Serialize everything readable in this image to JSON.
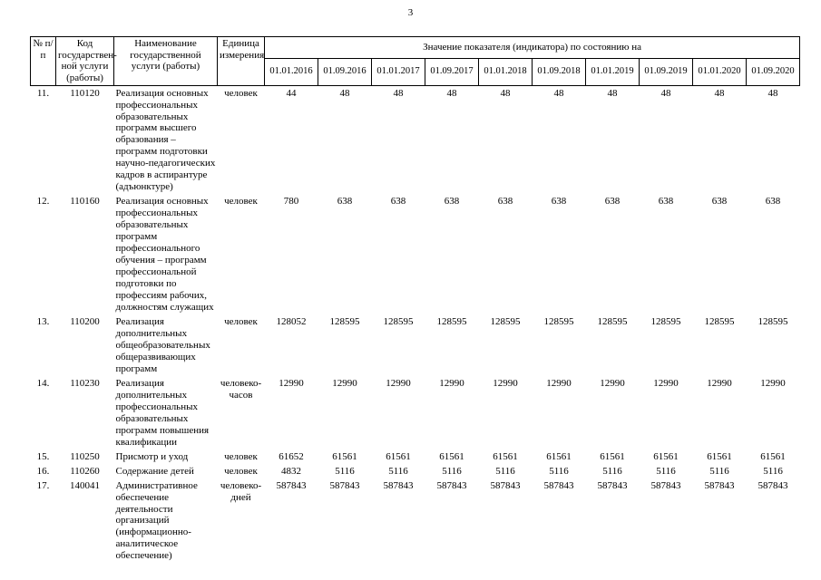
{
  "page": {
    "number": "3"
  },
  "table": {
    "headers": {
      "col_num": "№ п/п",
      "col_code": "Код государствен­ной услуги (работы)",
      "col_name": "Наименование государственной услуги (работы)",
      "col_unit": "Единица измерения",
      "col_values": "Значение показателя (индикатора) по состоянию на",
      "dates": [
        "01.01.2016",
        "01.09.2016",
        "01.01.2017",
        "01.09.2017",
        "01.01.2018",
        "01.09.2018",
        "01.01.2019",
        "01.09.2019",
        "01.01.2020",
        "01.09.2020"
      ]
    },
    "rows": [
      {
        "num": "11.",
        "code": "110120",
        "name": "Реализация основных профессиональных образовательных программ высшего образования – программ подготовки научно-педагогических кадров в аспирантуре (адъюнктуре)",
        "unit": "человек",
        "values": [
          "44",
          "48",
          "48",
          "48",
          "48",
          "48",
          "48",
          "48",
          "48",
          "48"
        ]
      },
      {
        "num": "12.",
        "code": "110160",
        "name": "Реализация основных профессиональных образовательных программ профессионального обучения – программ профессиональной подготовки по профессиям рабочих, должностям служащих",
        "unit": "человек",
        "values": [
          "780",
          "638",
          "638",
          "638",
          "638",
          "638",
          "638",
          "638",
          "638",
          "638"
        ]
      },
      {
        "num": "13.",
        "code": "110200",
        "name": "Реализация дополнительных общеобразовательных общеразвивающих программ",
        "unit": "человек",
        "values": [
          "128052",
          "128595",
          "128595",
          "128595",
          "128595",
          "128595",
          "128595",
          "128595",
          "128595",
          "128595"
        ]
      },
      {
        "num": "14.",
        "code": "110230",
        "name": "Реализация дополнительных профессиональных образовательных программ повышения квалификации",
        "unit": "человеко-часов",
        "values": [
          "12990",
          "12990",
          "12990",
          "12990",
          "12990",
          "12990",
          "12990",
          "12990",
          "12990",
          "12990"
        ]
      },
      {
        "num": "15.",
        "code": "110250",
        "name": "Присмотр и уход",
        "unit": "человек",
        "values": [
          "61652",
          "61561",
          "61561",
          "61561",
          "61561",
          "61561",
          "61561",
          "61561",
          "61561",
          "61561"
        ]
      },
      {
        "num": "16.",
        "code": "110260",
        "name": "Содержание детей",
        "unit": "человек",
        "values": [
          "4832",
          "5116",
          "5116",
          "5116",
          "5116",
          "5116",
          "5116",
          "5116",
          "5116",
          "5116"
        ]
      },
      {
        "num": "17.",
        "code": "140041",
        "name": "Административное обеспечение деятельности организаций (информационно-аналитическое обеспечение)",
        "unit": "человеко-дней",
        "values": [
          "587843",
          "587843",
          "587843",
          "587843",
          "587843",
          "587843",
          "587843",
          "587843",
          "587843",
          "587843"
        ]
      }
    ]
  }
}
